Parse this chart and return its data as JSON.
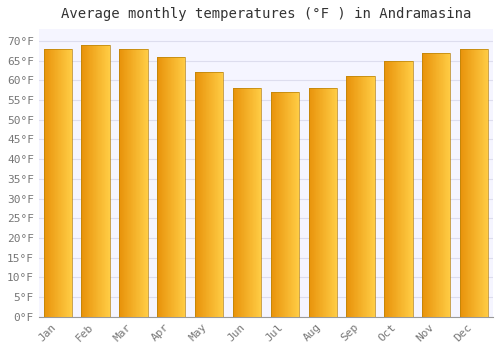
{
  "title": "Average monthly temperatures (°F ) in Andramasina",
  "months": [
    "Jan",
    "Feb",
    "Mar",
    "Apr",
    "May",
    "Jun",
    "Jul",
    "Aug",
    "Sep",
    "Oct",
    "Nov",
    "Dec"
  ],
  "values": [
    68,
    69,
    68,
    66,
    62,
    58,
    57,
    58,
    61,
    65,
    67,
    68
  ],
  "bar_color_left": "#E8920A",
  "bar_color_right": "#FFCC44",
  "bar_border_color": "#B8820A",
  "background_color": "#FFFFFF",
  "plot_bg_color": "#F5F5FF",
  "grid_color": "#DDDDEE",
  "ylim": [
    0,
    73
  ],
  "yticks": [
    0,
    5,
    10,
    15,
    20,
    25,
    30,
    35,
    40,
    45,
    50,
    55,
    60,
    65,
    70
  ],
  "title_fontsize": 10,
  "tick_fontsize": 8
}
